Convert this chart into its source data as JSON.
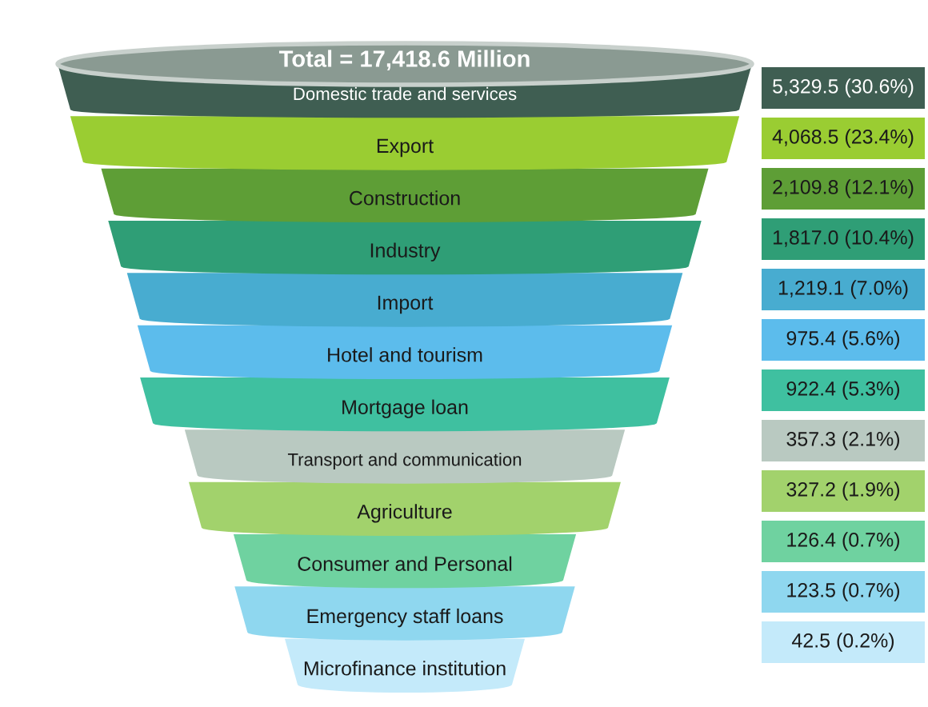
{
  "chart_data": {
    "type": "other",
    "title": "Total = 17,418.6 Million",
    "categories": [
      "Domestic trade and services",
      "Export",
      "Construction",
      "Industry",
      "Import",
      "Hotel and tourism",
      "Mortgage loan",
      "Transport and communication",
      "Agriculture",
      "Consumer and Personal",
      "Emergency staff loans",
      "Microfinance institution"
    ],
    "values": [
      5329.5,
      4068.5,
      2109.8,
      1817.0,
      1219.1,
      975.4,
      922.4,
      357.3,
      327.2,
      126.4,
      123.5,
      42.5
    ],
    "value_labels": [
      "5,329.5 (30.6%)",
      "4,068.5 (23.4%)",
      "2,109.8 (12.1%)",
      "1,817.0 (10.4%)",
      "1,219.1 (7.0%)",
      "975.4 (5.6%)",
      "922.4 (5.3%)",
      "357.3 (2.1%)",
      "327.2 (1.9%)",
      "126.4 (0.7%)",
      "123.5 (0.7%)",
      "42.5 (0.2%)"
    ],
    "colors": [
      "#3f5e52",
      "#9acd32",
      "#5e9e36",
      "#2f9e76",
      "#48acd0",
      "#5cbcec",
      "#3fc0a0",
      "#b9c9c1",
      "#a2d26c",
      "#6fd2a0",
      "#8fd7ef",
      "#c4eafa"
    ]
  }
}
